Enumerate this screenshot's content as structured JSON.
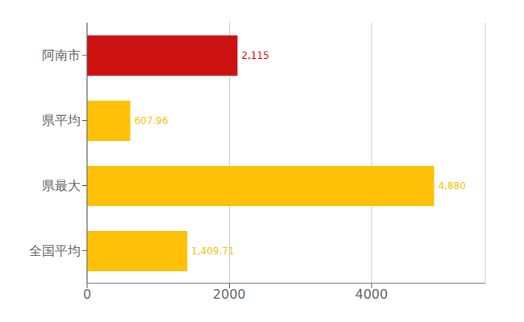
{
  "chart_data": {
    "type": "bar",
    "orientation": "horizontal",
    "categories": [
      "全国平均",
      "県最大",
      "県平均",
      "阿南市"
    ],
    "values": [
      1409.71,
      4880,
      607.96,
      2115
    ],
    "value_labels": [
      "1,409.71",
      "4,880",
      "607.96",
      "2,115"
    ],
    "colors": [
      "#FFC107",
      "#FFC107",
      "#FFC107",
      "#CC1111"
    ],
    "xlim": [
      0,
      5600
    ],
    "xticks": [
      0,
      2000,
      4000
    ],
    "grid": true,
    "data_labels": true
  }
}
